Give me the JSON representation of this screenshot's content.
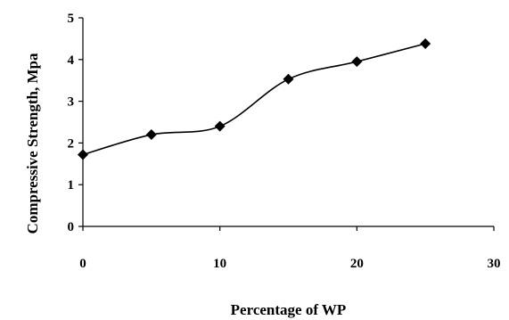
{
  "chart_data": {
    "type": "line",
    "title": "",
    "xlabel": "Percentage of WP",
    "ylabel": "Compressive Strength, Mpa",
    "xlim": [
      0,
      30
    ],
    "ylim": [
      0,
      5
    ],
    "x_ticks": [
      "0",
      "10",
      "20",
      "30"
    ],
    "y_ticks": [
      "0",
      "1",
      "2",
      "3",
      "4",
      "5"
    ],
    "grid": false,
    "smooth": true,
    "marker": "diamond",
    "series_color": "#000000",
    "series": [
      {
        "x": [
          0,
          5,
          10,
          15,
          20,
          25
        ],
        "values": [
          1.72,
          2.2,
          2.4,
          3.53,
          3.95,
          4.38
        ]
      }
    ]
  }
}
